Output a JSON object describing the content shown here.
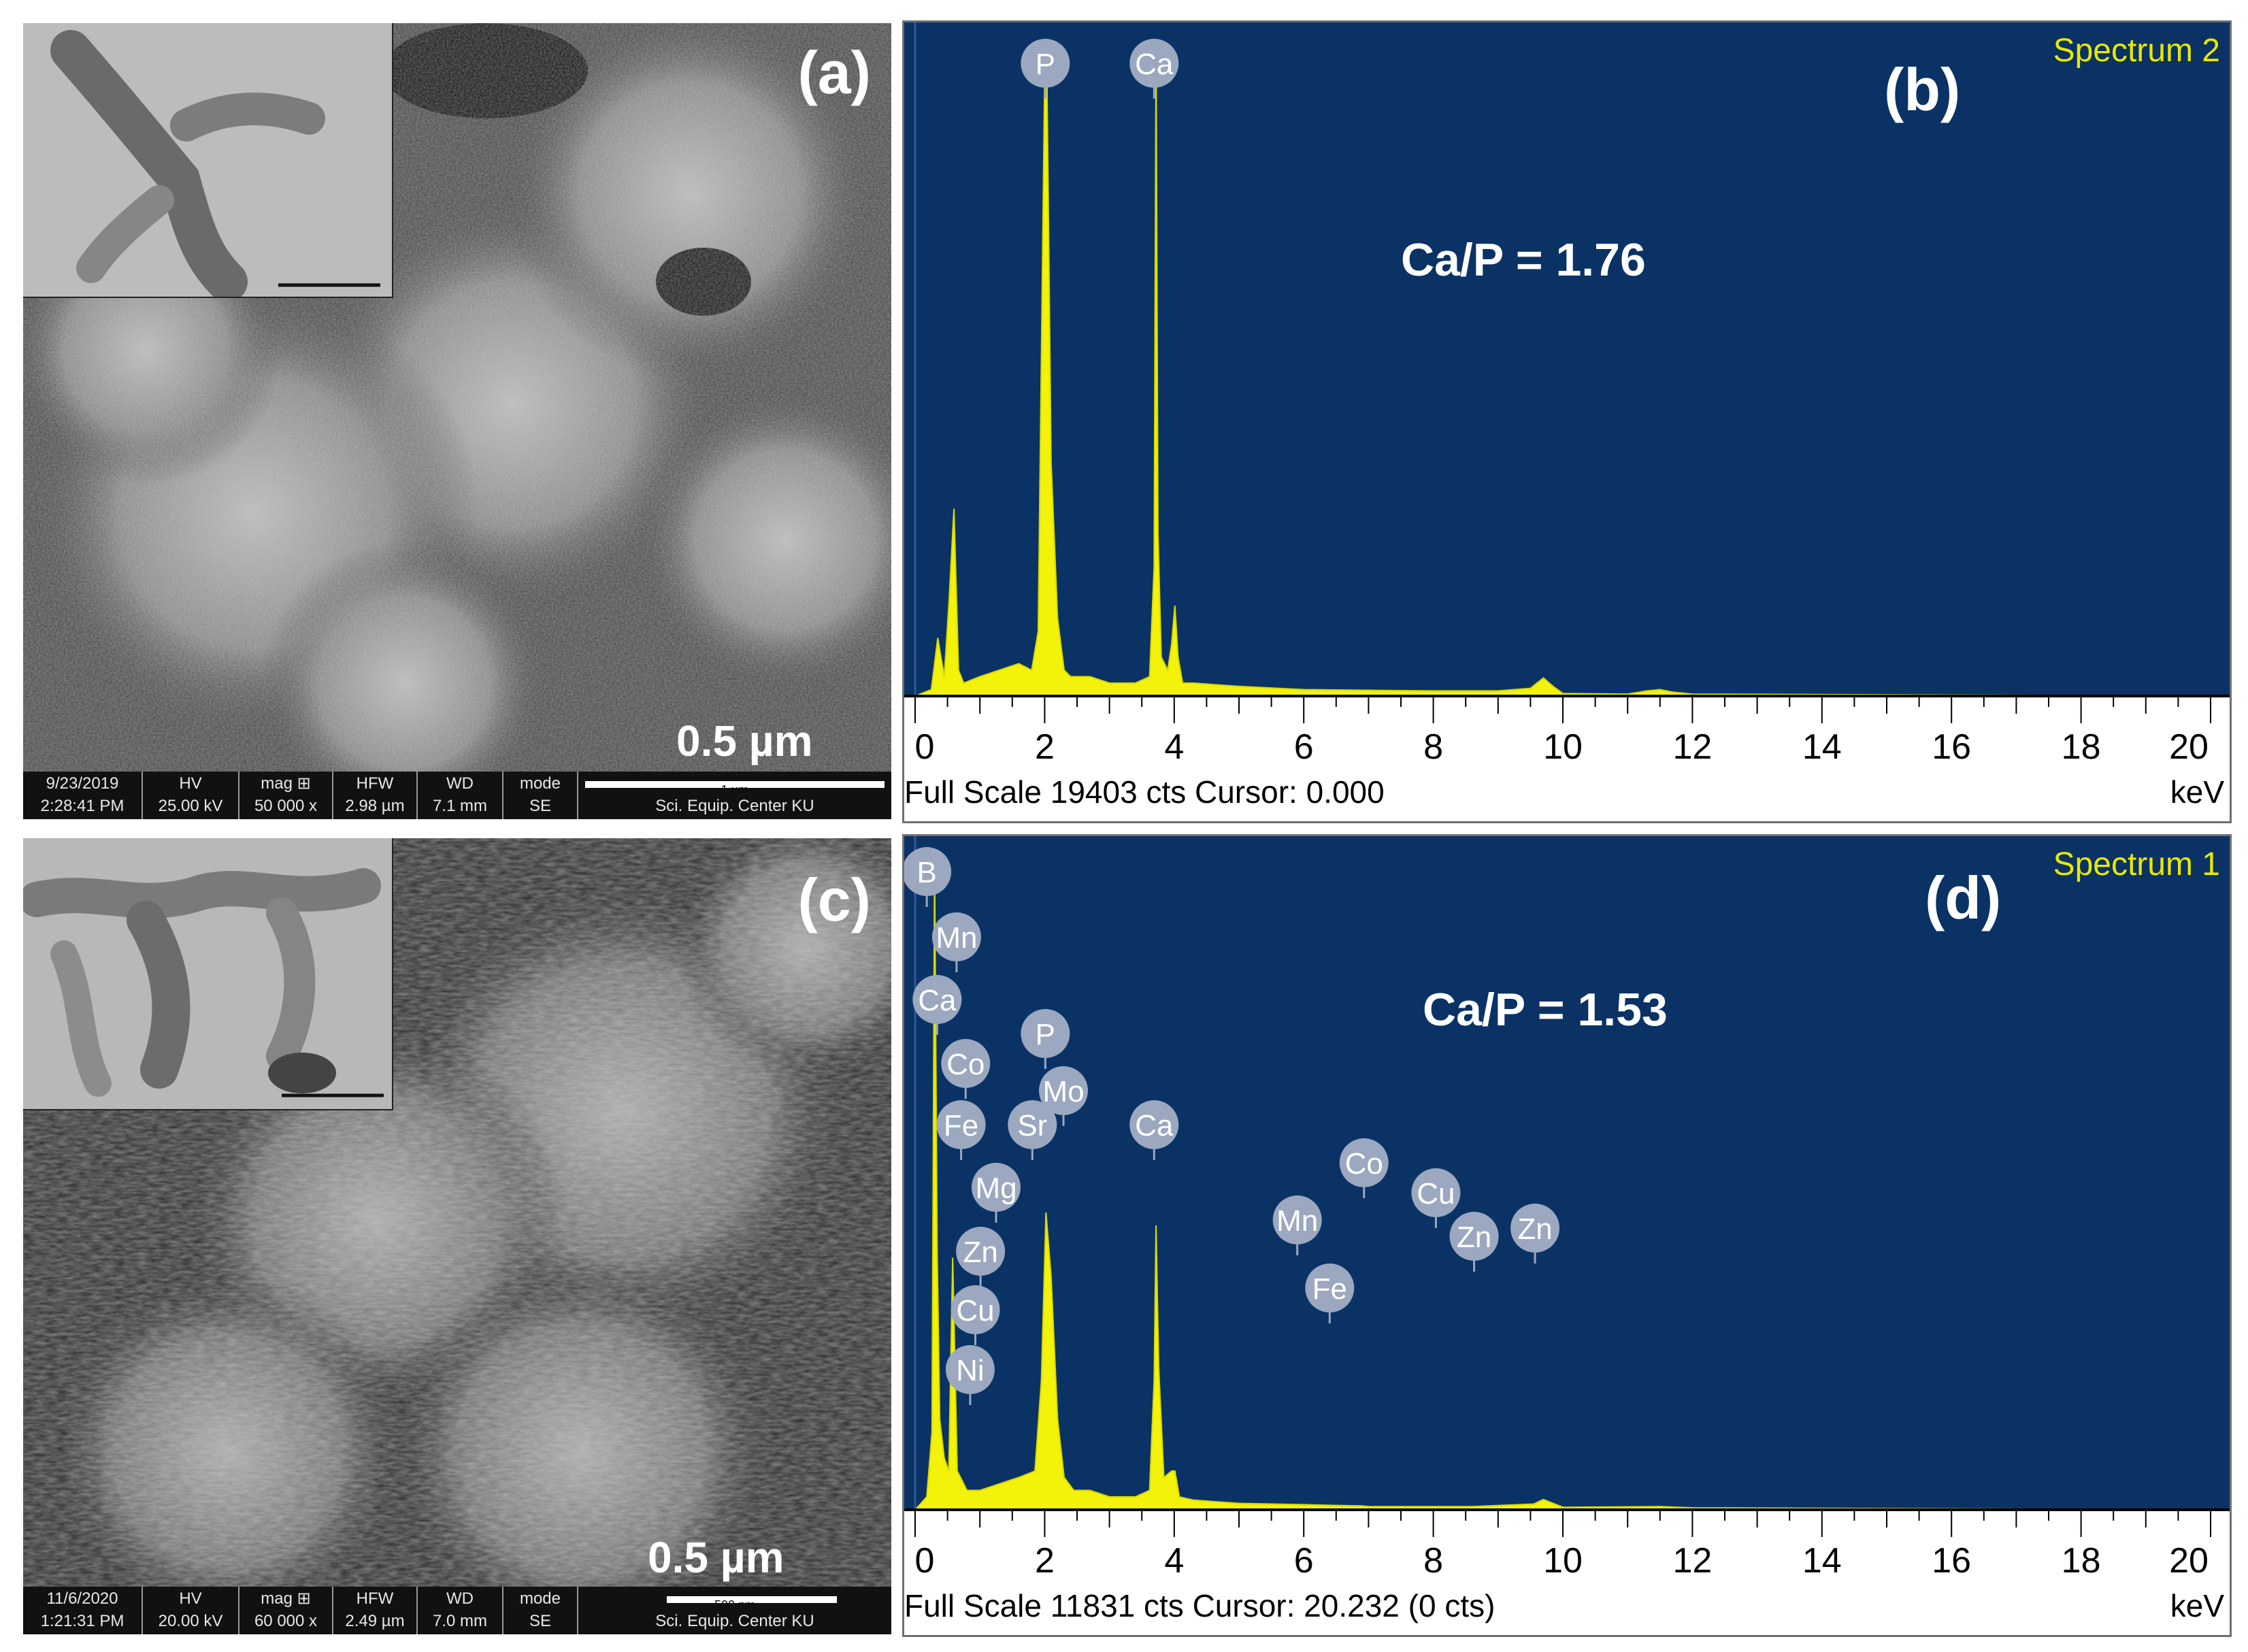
{
  "panels": {
    "a": {
      "label": "(a)",
      "scale_label": "0.5 µm",
      "info": {
        "date": "9/23/2019",
        "time": "2:28:41 PM",
        "hv_h": "HV",
        "hv": "25.00 kV",
        "mag_h": "mag ⊞",
        "mag": "50 000 x",
        "hfw_h": "HFW",
        "hfw": "2.98 µm",
        "wd_h": "WD",
        "wd": "7.1 mm",
        "mode_h": "mode",
        "mode": "SE",
        "bar_text": "1 µm",
        "center": "Sci. Equip. Center KU"
      }
    },
    "c": {
      "label": "(c)",
      "scale_label": "0.5 µm",
      "info": {
        "date": "11/6/2020",
        "time": "1:21:31 PM",
        "hv_h": "HV",
        "hv": "20.00 kV",
        "mag_h": "mag ⊞",
        "mag": "60 000 x",
        "hfw_h": "HFW",
        "hfw": "2.49 µm",
        "wd_h": "WD",
        "wd": "7.0 mm",
        "mode_h": "mode",
        "mode": "SE",
        "bar_text": "500 nm",
        "center": "Sci. Equip. Center KU"
      }
    },
    "b": {
      "label": "(b)",
      "spectrum_name": "Spectrum 2",
      "ratio": "Ca/P = 1.76",
      "footer": "Full Scale 19403 cts Cursor: 0.000",
      "unit": "keV"
    },
    "d": {
      "label": "(d)",
      "spectrum_name": "Spectrum 1",
      "ratio": "Ca/P = 1.53",
      "footer": "Full Scale 11831 cts Cursor: 20.232  (0 cts)",
      "unit": "keV"
    }
  },
  "colors": {
    "plot_background": "#0a3265",
    "spectrum_fill": "#f2f20a",
    "spectrum_title": "#e8e800",
    "peak_tag": "#9ba8bf"
  },
  "chart_data": [
    {
      "type": "area",
      "panel": "b",
      "title": "Spectrum 2",
      "xlabel": "keV",
      "xlim": [
        0,
        20
      ],
      "ylim": [
        0,
        100
      ],
      "x_ticks": [
        "0",
        "2",
        "4",
        "6",
        "8",
        "10",
        "12",
        "14",
        "16",
        "18",
        "20"
      ],
      "series": [
        {
          "x": [
            0,
            0.25,
            0.35,
            0.45,
            0.52,
            0.6,
            0.67,
            0.75,
            1.0,
            1.3,
            1.6,
            1.8,
            1.9,
            2.0,
            2.03,
            2.1,
            2.2,
            2.3,
            2.4,
            2.7,
            3.0,
            3.4,
            3.62,
            3.69,
            3.72,
            3.75,
            3.8,
            3.9,
            3.96,
            4.01,
            4.06,
            4.13,
            4.3,
            5.0,
            6.0,
            7.0,
            8.0,
            9.0,
            9.5,
            9.7,
            9.85,
            10.0,
            11.0,
            11.3,
            11.5,
            11.7,
            12.0,
            20
          ],
          "y": [
            0,
            1,
            9,
            3,
            14,
            29,
            4,
            2,
            3,
            4,
            5,
            4,
            10,
            96,
            100,
            36,
            12,
            4,
            3,
            3,
            2,
            2,
            3,
            20,
            100,
            25,
            6,
            4,
            8,
            14,
            6,
            2,
            2,
            1.5,
            1,
            0.9,
            0.8,
            0.8,
            1.2,
            2.8,
            1.5,
            0.4,
            0.3,
            0.8,
            1,
            0.6,
            0.3,
            0
          ]
        }
      ],
      "peak_labels": [
        {
          "label": "P",
          "x": 2.01
        },
        {
          "label": "Ca",
          "x": 3.69
        }
      ]
    },
    {
      "type": "area",
      "panel": "d",
      "title": "Spectrum 1",
      "xlabel": "keV",
      "xlim": [
        0,
        20
      ],
      "ylim": [
        0,
        100
      ],
      "x_ticks": [
        "0",
        "2",
        "4",
        "6",
        "8",
        "10",
        "12",
        "14",
        "16",
        "18",
        "20"
      ],
      "series": [
        {
          "x": [
            0,
            0.18,
            0.26,
            0.3,
            0.34,
            0.38,
            0.45,
            0.52,
            0.58,
            0.65,
            0.8,
            1.0,
            1.3,
            1.6,
            1.85,
            1.95,
            2.02,
            2.1,
            2.2,
            2.3,
            2.45,
            2.7,
            3.0,
            3.4,
            3.62,
            3.69,
            3.72,
            3.76,
            3.84,
            3.96,
            4.01,
            4.08,
            4.3,
            5.0,
            6.0,
            6.4,
            6.9,
            7.0,
            8.0,
            8.6,
            9.55,
            9.7,
            9.85,
            10.0,
            11.5,
            12.0,
            20
          ],
          "y": [
            0,
            2,
            12,
            100,
            40,
            14,
            8,
            6,
            39,
            6,
            3,
            3,
            4,
            5,
            6,
            20,
            46,
            36,
            14,
            5,
            3,
            3,
            2,
            2,
            3,
            20,
            44,
            22,
            5,
            6,
            6,
            2,
            1.5,
            1,
            0.8,
            0.7,
            0.6,
            0.5,
            0.5,
            0.5,
            0.9,
            1.6,
            1,
            0.4,
            0.5,
            0.3,
            0
          ]
        }
      ],
      "peak_labels": [
        {
          "label": "B",
          "x": 0.18
        },
        {
          "label": "Mn",
          "x": 0.64
        },
        {
          "label": "Ca",
          "x": 0.34
        },
        {
          "label": "Co",
          "x": 0.78
        },
        {
          "label": "Fe",
          "x": 0.71
        },
        {
          "label": "Mg",
          "x": 1.25
        },
        {
          "label": "Zn",
          "x": 1.01
        },
        {
          "label": "Cu",
          "x": 0.93
        },
        {
          "label": "Ni",
          "x": 0.85
        },
        {
          "label": "P",
          "x": 2.01
        },
        {
          "label": "Mo",
          "x": 2.29
        },
        {
          "label": "Sr",
          "x": 1.81
        },
        {
          "label": "Ca",
          "x": 3.69
        },
        {
          "label": "Co",
          "x": 6.93
        },
        {
          "label": "Mn",
          "x": 5.9
        },
        {
          "label": "Fe",
          "x": 6.4
        },
        {
          "label": "Cu",
          "x": 8.04
        },
        {
          "label": "Zn",
          "x": 8.63
        },
        {
          "label": "Zn",
          "x": 9.57
        }
      ]
    }
  ]
}
